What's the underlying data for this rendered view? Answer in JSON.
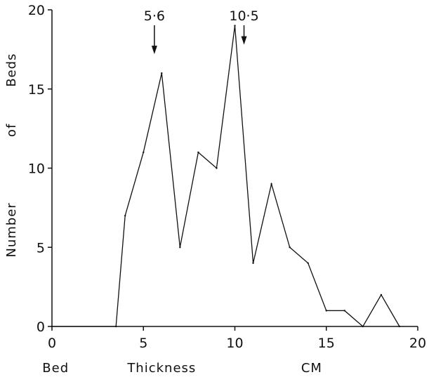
{
  "chart_data": {
    "type": "line",
    "title": "",
    "xlabel_words": [
      "Bed",
      "Thickness",
      "CM"
    ],
    "ylabel_words": [
      "Number",
      "of",
      "Beds"
    ],
    "xlim": [
      0,
      20
    ],
    "ylim": [
      0,
      20
    ],
    "x_ticks": [
      0,
      5,
      10,
      15,
      20
    ],
    "y_ticks": [
      0,
      5,
      10,
      15,
      20
    ],
    "x_tick_labels": [
      "0",
      "5",
      "10",
      "15",
      "20"
    ],
    "y_tick_labels": [
      "0",
      "5",
      "10",
      "15",
      "20"
    ],
    "grid": false,
    "series": [
      {
        "x": [
          0,
          3.5,
          4,
          5,
          6,
          7,
          8,
          9,
          10,
          11,
          12,
          13,
          14,
          15,
          16,
          17,
          18,
          19
        ],
        "y": [
          0,
          0,
          7,
          11,
          16,
          5,
          11,
          10,
          19,
          4,
          9,
          5,
          4,
          1,
          1,
          0,
          2,
          0
        ]
      }
    ],
    "annotations": [
      {
        "text": "5·6",
        "x": 5.6,
        "arrow_to_y": 17.2
      },
      {
        "text": "10·5",
        "x": 10.5,
        "arrow_to_y": 17.8
      }
    ]
  }
}
